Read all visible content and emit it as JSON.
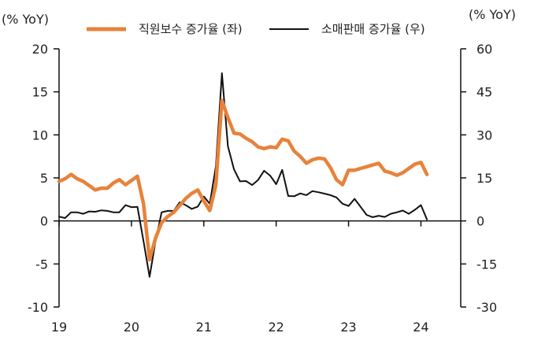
{
  "chart_data": {
    "type": "line",
    "title": "",
    "left_axis_unit": "(% YoY)",
    "right_axis_unit": "(% YoY)",
    "xlabel": "",
    "ylabel": "",
    "x_range": [
      2019.0,
      2024.55
    ],
    "ylim_left": [
      -10,
      20
    ],
    "ylim_right": [
      -30,
      60
    ],
    "yticks_left": [
      "20",
      "15",
      "10",
      "5",
      "0",
      "-5",
      "-10"
    ],
    "yticks_right": [
      "60",
      "45",
      "30",
      "15",
      "0",
      "-15",
      "-30"
    ],
    "ytick_values_left": [
      20,
      15,
      10,
      5,
      0,
      -5,
      -10
    ],
    "ytick_values_right": [
      60,
      45,
      30,
      15,
      0,
      -15,
      -30
    ],
    "xticks": [
      "19",
      "20",
      "21",
      "22",
      "23",
      "24"
    ],
    "xtick_values": [
      2019,
      2020,
      2021,
      2022,
      2023,
      2024
    ],
    "grid": false,
    "legend_position": "top",
    "series": [
      {
        "name": "직원보수 증가율 (좌)",
        "axis": "left",
        "color": "#E8823A",
        "x": [
          2019.0,
          2019.083,
          2019.167,
          2019.25,
          2019.333,
          2019.417,
          2019.5,
          2019.583,
          2019.667,
          2019.75,
          2019.833,
          2019.917,
          2020.0,
          2020.083,
          2020.167,
          2020.25,
          2020.333,
          2020.417,
          2020.5,
          2020.583,
          2020.667,
          2020.75,
          2020.833,
          2020.917,
          2021.0,
          2021.083,
          2021.167,
          2021.25,
          2021.333,
          2021.417,
          2021.5,
          2021.583,
          2021.667,
          2021.75,
          2021.833,
          2021.917,
          2022.0,
          2022.083,
          2022.167,
          2022.25,
          2022.333,
          2022.417,
          2022.5,
          2022.583,
          2022.667,
          2022.75,
          2022.833,
          2022.917,
          2023.0,
          2023.083,
          2023.167,
          2023.25,
          2023.333,
          2023.417,
          2023.5,
          2023.583,
          2023.667,
          2023.75,
          2023.833,
          2023.917,
          2024.0,
          2024.083
        ],
        "values": [
          4.6,
          4.9,
          5.4,
          4.9,
          4.6,
          4.1,
          3.6,
          3.8,
          3.8,
          4.4,
          4.8,
          4.2,
          4.7,
          5.2,
          2.0,
          -4.5,
          -2.0,
          -0.2,
          0.5,
          1.0,
          1.8,
          2.6,
          3.2,
          3.6,
          2.3,
          1.2,
          4.2,
          14.0,
          12.0,
          10.2,
          10.1,
          9.6,
          9.2,
          8.6,
          8.4,
          8.6,
          8.5,
          9.5,
          9.3,
          8.1,
          7.5,
          6.7,
          7.1,
          7.3,
          7.2,
          6.2,
          4.8,
          4.2,
          5.9,
          5.9,
          6.1,
          6.3,
          6.5,
          6.7,
          5.8,
          5.6,
          5.3,
          5.6,
          6.1,
          6.6,
          6.8,
          5.4
        ]
      },
      {
        "name": "소매판매 증가율 (우)",
        "axis": "right",
        "color": "#111111",
        "x": [
          2019.0,
          2019.083,
          2019.167,
          2019.25,
          2019.333,
          2019.417,
          2019.5,
          2019.583,
          2019.667,
          2019.75,
          2019.833,
          2019.917,
          2020.0,
          2020.083,
          2020.167,
          2020.25,
          2020.333,
          2020.417,
          2020.5,
          2020.583,
          2020.667,
          2020.75,
          2020.833,
          2020.917,
          2021.0,
          2021.083,
          2021.167,
          2021.25,
          2021.333,
          2021.417,
          2021.5,
          2021.583,
          2021.667,
          2021.75,
          2021.833,
          2021.917,
          2022.0,
          2022.083,
          2022.167,
          2022.25,
          2022.333,
          2022.417,
          2022.5,
          2022.583,
          2022.667,
          2022.75,
          2022.833,
          2022.917,
          2023.0,
          2023.083,
          2023.167,
          2023.25,
          2023.333,
          2023.417,
          2023.5,
          2023.583,
          2023.667,
          2023.75,
          2023.833,
          2023.917,
          2024.0,
          2024.083
        ],
        "values": [
          1.5,
          1.0,
          3.0,
          3.0,
          2.5,
          3.3,
          3.2,
          3.7,
          3.5,
          3.0,
          3.0,
          5.5,
          4.8,
          4.9,
          -7.0,
          -19.5,
          -7.0,
          3.0,
          3.5,
          3.5,
          6.5,
          5.5,
          4.2,
          5.0,
          8.5,
          6.0,
          19.0,
          51.5,
          26.0,
          18.0,
          13.8,
          13.9,
          12.5,
          14.3,
          17.5,
          15.8,
          12.8,
          17.8,
          8.7,
          8.6,
          9.6,
          9.0,
          10.4,
          10.0,
          9.5,
          9.0,
          8.2,
          6.0,
          5.2,
          7.7,
          4.9,
          2.1,
          1.3,
          1.8,
          1.4,
          2.5,
          3.0,
          3.6,
          2.5,
          3.9,
          5.5,
          0.5
        ]
      }
    ]
  }
}
